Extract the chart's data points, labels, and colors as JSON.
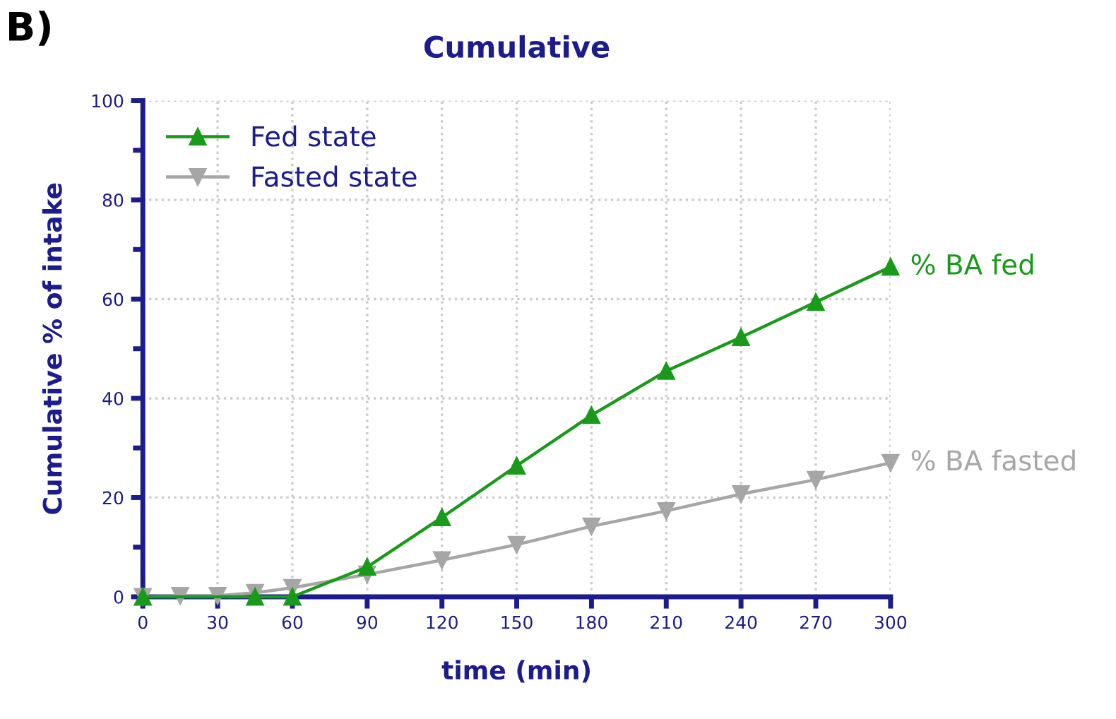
{
  "chart_data": {
    "type": "line",
    "title": "Cumulative",
    "xlabel": "time (min)",
    "ylabel": "Cumulative % of intake",
    "xlim": [
      0,
      300
    ],
    "xticks": [
      0,
      30,
      60,
      90,
      120,
      150,
      180,
      210,
      240,
      270,
      300
    ],
    "ylim": [
      0,
      100
    ],
    "yticks": [
      0,
      20,
      40,
      60,
      80,
      100
    ],
    "grid": true,
    "legend": "top left",
    "line_style": "solid",
    "series": [
      {
        "name": "Fed state",
        "color": "#1a9a1a",
        "marker": "triangle",
        "x": [
          0,
          45,
          60,
          90,
          120,
          150,
          180,
          210,
          240,
          270,
          300
        ],
        "values": [
          0,
          0,
          0,
          6,
          16,
          26.4,
          36.6,
          45.5,
          52.3,
          59.4,
          66.5
        ]
      },
      {
        "name": "Fasted state",
        "color": "#a6a6a6",
        "marker": "triangle_down",
        "x": [
          0,
          15,
          30,
          45,
          60,
          90,
          120,
          150,
          180,
          210,
          240,
          270,
          300
        ],
        "values": [
          0,
          0.2,
          0.2,
          0.8,
          1.8,
          4.5,
          7.4,
          10.5,
          14.2,
          17.3,
          20.7,
          23.6,
          27
        ]
      }
    ],
    "annotations": [
      {
        "text": "% BA fed",
        "x": 300,
        "y": 66.5
      },
      {
        "text": "% BA fasted",
        "x": 300,
        "y": 27
      },
      "B)"
    ]
  }
}
